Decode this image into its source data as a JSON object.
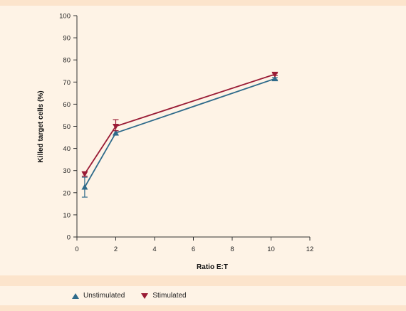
{
  "chart_data": {
    "type": "line",
    "xlabel": "Ratio E:T",
    "ylabel": "Killed target cells (%)",
    "xlim": [
      0,
      12
    ],
    "ylim": [
      0,
      100
    ],
    "xticks": [
      0,
      2,
      4,
      6,
      8,
      10,
      12
    ],
    "yticks": [
      0,
      10,
      20,
      30,
      40,
      50,
      60,
      70,
      80,
      90,
      100
    ],
    "grid": false,
    "legend_position": "bottom",
    "series": [
      {
        "name": "Unstimulated",
        "color": "#2e6a8a",
        "marker": "triangle-up",
        "x": [
          0.4,
          2,
          10.2
        ],
        "y": [
          22.5,
          47,
          71.5
        ],
        "err_low": [
          18,
          46,
          71
        ],
        "err_high": [
          27,
          48,
          72
        ]
      },
      {
        "name": "Stimulated",
        "color": "#9a1b35",
        "marker": "triangle-down",
        "x": [
          0.4,
          2,
          10.2
        ],
        "y": [
          28.5,
          50,
          73.5
        ],
        "err_low": [
          27.5,
          48,
          73
        ],
        "err_high": [
          29.5,
          53,
          74
        ]
      }
    ]
  }
}
